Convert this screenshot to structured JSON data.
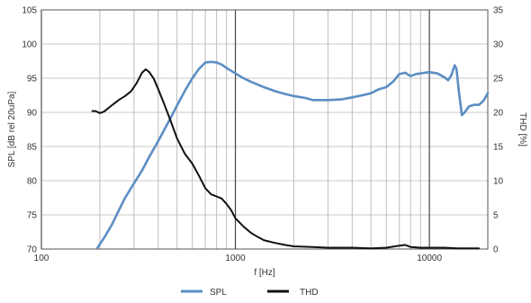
{
  "chart_data": {
    "type": "line",
    "title": "",
    "xlabel": "f [Hz]",
    "ylabel": "SPL [dB rel 20uPa]",
    "ylabel_right": "THD [%]",
    "xscale": "log",
    "xlim": [
      100,
      20000
    ],
    "ylim": [
      70,
      105
    ],
    "ylim_right": [
      0,
      35
    ],
    "x_ticks": [
      100,
      1000,
      10000
    ],
    "x_tick_labels": [
      "100",
      "1000",
      "10000"
    ],
    "y_ticks": [
      70,
      75,
      80,
      85,
      90,
      95,
      100,
      105
    ],
    "y_tick_labels": [
      "70",
      "75",
      "80",
      "85",
      "90",
      "95",
      "100",
      "105"
    ],
    "y_right_ticks": [
      0,
      5,
      10,
      15,
      20,
      25,
      30,
      35
    ],
    "y_right_tick_labels": [
      "0",
      "5",
      "10",
      "15",
      "20",
      "25",
      "30",
      "35"
    ],
    "grid": true,
    "legend_position": "bottom-center",
    "series": [
      {
        "name": "SPL",
        "axis": "left",
        "color": "#5b8ec4",
        "points": [
          [
            195,
            70.2
          ],
          [
            200,
            70.7
          ],
          [
            210,
            71.6
          ],
          [
            230,
            73.5
          ],
          [
            250,
            75.6
          ],
          [
            270,
            77.5
          ],
          [
            300,
            79.6
          ],
          [
            330,
            81.5
          ],
          [
            360,
            83.5
          ],
          [
            400,
            85.8
          ],
          [
            450,
            88.5
          ],
          [
            500,
            91.0
          ],
          [
            550,
            93.2
          ],
          [
            600,
            95.0
          ],
          [
            650,
            96.4
          ],
          [
            700,
            97.3
          ],
          [
            750,
            97.4
          ],
          [
            800,
            97.3
          ],
          [
            850,
            97.0
          ],
          [
            900,
            96.5
          ],
          [
            1000,
            95.7
          ],
          [
            1100,
            95.0
          ],
          [
            1200,
            94.5
          ],
          [
            1400,
            93.7
          ],
          [
            1600,
            93.1
          ],
          [
            1800,
            92.7
          ],
          [
            2000,
            92.4
          ],
          [
            2300,
            92.1
          ],
          [
            2500,
            91.8
          ],
          [
            3000,
            91.8
          ],
          [
            3500,
            91.9
          ],
          [
            4000,
            92.2
          ],
          [
            4500,
            92.5
          ],
          [
            5000,
            92.8
          ],
          [
            5500,
            93.4
          ],
          [
            6000,
            93.7
          ],
          [
            6500,
            94.5
          ],
          [
            7000,
            95.6
          ],
          [
            7500,
            95.8
          ],
          [
            8000,
            95.3
          ],
          [
            8500,
            95.6
          ],
          [
            9000,
            95.7
          ],
          [
            10000,
            95.9
          ],
          [
            11000,
            95.7
          ],
          [
            12000,
            95.1
          ],
          [
            12500,
            94.7
          ],
          [
            13000,
            95.5
          ],
          [
            13500,
            96.9
          ],
          [
            13800,
            96.3
          ],
          [
            14200,
            93.0
          ],
          [
            14700,
            89.6
          ],
          [
            15200,
            90.0
          ],
          [
            16000,
            90.9
          ],
          [
            17000,
            91.1
          ],
          [
            18000,
            91.1
          ],
          [
            19000,
            91.7
          ],
          [
            20000,
            92.8
          ]
        ]
      },
      {
        "name": "THD",
        "axis": "right",
        "color": "#111111",
        "points": [
          [
            183,
            20.2
          ],
          [
            190,
            20.2
          ],
          [
            200,
            19.9
          ],
          [
            210,
            20.1
          ],
          [
            230,
            21.0
          ],
          [
            250,
            21.8
          ],
          [
            270,
            22.4
          ],
          [
            290,
            23.1
          ],
          [
            310,
            24.3
          ],
          [
            330,
            25.8
          ],
          [
            345,
            26.3
          ],
          [
            360,
            25.9
          ],
          [
            380,
            24.9
          ],
          [
            400,
            23.4
          ],
          [
            430,
            21.2
          ],
          [
            460,
            19.0
          ],
          [
            500,
            16.2
          ],
          [
            550,
            13.9
          ],
          [
            600,
            12.5
          ],
          [
            650,
            10.7
          ],
          [
            700,
            8.9
          ],
          [
            750,
            8.0
          ],
          [
            800,
            7.7
          ],
          [
            850,
            7.4
          ],
          [
            900,
            6.6
          ],
          [
            950,
            5.7
          ],
          [
            1000,
            4.5
          ],
          [
            1100,
            3.3
          ],
          [
            1200,
            2.4
          ],
          [
            1300,
            1.8
          ],
          [
            1400,
            1.3
          ],
          [
            1600,
            0.9
          ],
          [
            1800,
            0.6
          ],
          [
            2000,
            0.4
          ],
          [
            2500,
            0.3
          ],
          [
            3000,
            0.2
          ],
          [
            4000,
            0.2
          ],
          [
            5000,
            0.1
          ],
          [
            6000,
            0.2
          ],
          [
            7000,
            0.5
          ],
          [
            7500,
            0.6
          ],
          [
            8000,
            0.3
          ],
          [
            9000,
            0.2
          ],
          [
            10000,
            0.2
          ],
          [
            12000,
            0.2
          ],
          [
            14000,
            0.1
          ],
          [
            17000,
            0.1
          ],
          [
            18000,
            0.1
          ]
        ]
      }
    ]
  }
}
